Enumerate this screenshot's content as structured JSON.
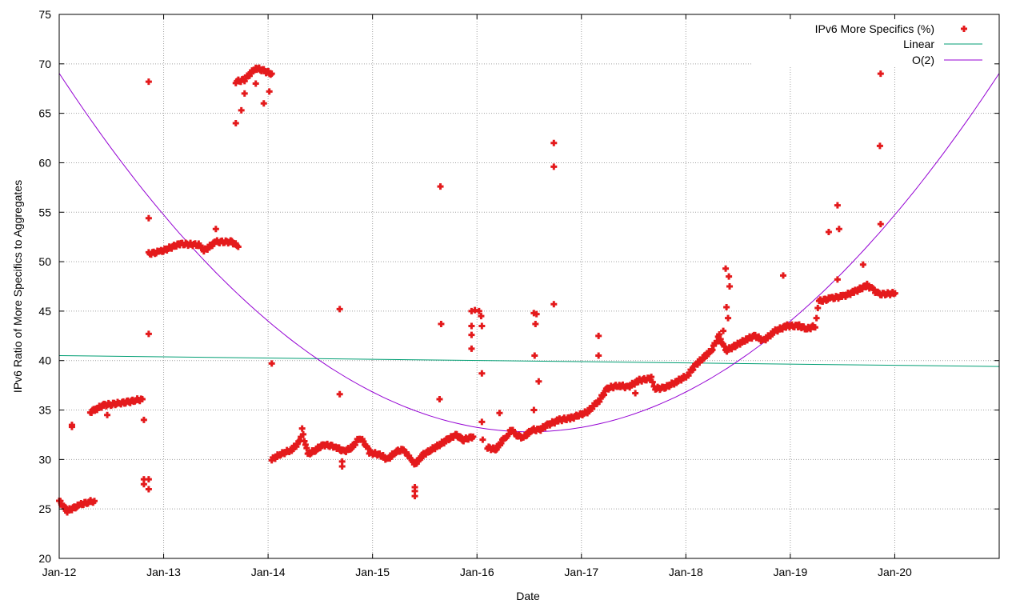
{
  "chart_data": {
    "type": "scatter",
    "xlabel": "Date",
    "ylabel": "IPv6 Ratio of More Specifics to Aggregates",
    "xlim": [
      2012,
      2021
    ],
    "ylim": [
      20,
      75
    ],
    "grid": true,
    "legend_position": "top-right",
    "x_ticks": [
      {
        "x": 2012,
        "label": "Jan-12"
      },
      {
        "x": 2013,
        "label": "Jan-13"
      },
      {
        "x": 2014,
        "label": "Jan-14"
      },
      {
        "x": 2015,
        "label": "Jan-15"
      },
      {
        "x": 2016,
        "label": "Jan-16"
      },
      {
        "x": 2017,
        "label": "Jan-17"
      },
      {
        "x": 2018,
        "label": "Jan-18"
      },
      {
        "x": 2019,
        "label": "Jan-19"
      },
      {
        "x": 2020,
        "label": "Jan-20"
      }
    ],
    "y_ticks": [
      "20",
      "25",
      "30",
      "35",
      "40",
      "45",
      "50",
      "55",
      "60",
      "65",
      "70",
      "75"
    ],
    "series": [
      {
        "name": "IPv6 More Specifics (%)",
        "kind": "points",
        "color": "#e41a1c",
        "trend_segments": [
          [
            [
              2012.0,
              25.8
            ],
            [
              2012.077,
              24.8
            ],
            [
              2012.199,
              25.4
            ],
            [
              2012.275,
              25.7
            ],
            [
              2012.337,
              25.8
            ]
          ],
          [
            [
              2012.298,
              34.8
            ],
            [
              2012.352,
              35.1
            ],
            [
              2012.428,
              35.5
            ],
            [
              2012.505,
              35.6
            ],
            [
              2012.581,
              35.7
            ],
            [
              2012.658,
              35.8
            ],
            [
              2012.735,
              36.0
            ],
            [
              2012.796,
              36.1
            ]
          ],
          [
            [
              2012.857,
              50.8
            ],
            [
              2012.964,
              51.0
            ],
            [
              2013.155,
              51.8
            ],
            [
              2013.347,
              51.7
            ],
            [
              2013.385,
              51.1
            ],
            [
              2013.5,
              52.0
            ],
            [
              2013.653,
              52.0
            ],
            [
              2013.714,
              51.5
            ]
          ],
          [
            [
              2013.691,
              68.2
            ],
            [
              2013.775,
              68.4
            ],
            [
              2013.882,
              69.6
            ],
            [
              2013.959,
              69.3
            ],
            [
              2014.035,
              69.0
            ]
          ],
          [
            [
              2014.035,
              30.0
            ],
            [
              2014.112,
              30.5
            ],
            [
              2014.226,
              31.0
            ],
            [
              2014.303,
              31.8
            ],
            [
              2014.326,
              33.0
            ],
            [
              2014.38,
              30.5
            ],
            [
              2014.456,
              31.0
            ],
            [
              2014.533,
              31.5
            ],
            [
              2014.647,
              31.3
            ],
            [
              2014.724,
              30.8
            ],
            [
              2014.8,
              31.2
            ],
            [
              2014.877,
              32.2
            ],
            [
              2014.938,
              31.5
            ],
            [
              2014.969,
              30.7
            ],
            [
              2015.068,
              30.5
            ],
            [
              2015.145,
              30.0
            ],
            [
              2015.221,
              30.8
            ],
            [
              2015.298,
              31.0
            ],
            [
              2015.336,
              30.5
            ],
            [
              2015.374,
              29.8
            ],
            [
              2015.412,
              29.6
            ],
            [
              2015.489,
              30.5
            ],
            [
              2015.565,
              31.0
            ],
            [
              2015.642,
              31.5
            ],
            [
              2015.718,
              32.0
            ],
            [
              2015.795,
              32.5
            ],
            [
              2015.871,
              32.0
            ],
            [
              2015.963,
              32.3
            ]
          ],
          [
            [
              2016.101,
              31.2
            ],
            [
              2016.177,
              31.0
            ],
            [
              2016.254,
              32.0
            ],
            [
              2016.292,
              32.5
            ],
            [
              2016.33,
              33.0
            ],
            [
              2016.369,
              32.5
            ],
            [
              2016.445,
              32.2
            ],
            [
              2016.522,
              33.0
            ],
            [
              2016.599,
              33.0
            ],
            [
              2016.675,
              33.5
            ],
            [
              2016.79,
              34.0
            ],
            [
              2016.904,
              34.2
            ],
            [
              2017.057,
              34.8
            ],
            [
              2017.172,
              36.0
            ],
            [
              2017.249,
              37.2
            ],
            [
              2017.363,
              37.5
            ],
            [
              2017.44,
              37.3
            ],
            [
              2017.555,
              38.0
            ],
            [
              2017.669,
              38.2
            ],
            [
              2017.708,
              37.2
            ],
            [
              2017.784,
              37.2
            ],
            [
              2017.899,
              37.8
            ],
            [
              2018.014,
              38.5
            ],
            [
              2018.09,
              39.5
            ],
            [
              2018.167,
              40.3
            ],
            [
              2018.243,
              41.0
            ],
            [
              2018.32,
              42.5
            ],
            [
              2018.381,
              41.0
            ],
            [
              2018.473,
              41.5
            ],
            [
              2018.588,
              42.2
            ],
            [
              2018.664,
              42.5
            ],
            [
              2018.741,
              42.0
            ],
            [
              2018.856,
              43.0
            ],
            [
              2018.97,
              43.5
            ],
            [
              2019.085,
              43.5
            ],
            [
              2019.161,
              43.2
            ],
            [
              2019.238,
              43.5
            ],
            [
              2019.276,
              46.0
            ],
            [
              2019.391,
              46.3
            ],
            [
              2019.506,
              46.5
            ],
            [
              2019.621,
              47.0
            ],
            [
              2019.735,
              47.6
            ],
            [
              2019.789,
              47.2
            ],
            [
              2019.85,
              46.7
            ],
            [
              2020.003,
              46.8
            ]
          ]
        ],
        "outliers": [
          [
            2012.122,
            33.3
          ],
          [
            2012.122,
            33.5
          ],
          [
            2012.46,
            34.5
          ],
          [
            2012.811,
            34.0
          ],
          [
            2012.811,
            27.5
          ],
          [
            2012.811,
            28.0
          ],
          [
            2012.857,
            68.2
          ],
          [
            2012.857,
            54.4
          ],
          [
            2012.857,
            42.7
          ],
          [
            2012.857,
            27.0
          ],
          [
            2012.857,
            28.0
          ],
          [
            2013.5,
            53.3
          ],
          [
            2013.691,
            64.0
          ],
          [
            2013.744,
            65.3
          ],
          [
            2013.775,
            67.0
          ],
          [
            2013.882,
            68.0
          ],
          [
            2013.959,
            66.0
          ],
          [
            2014.012,
            67.2
          ],
          [
            2014.035,
            39.7
          ],
          [
            2014.686,
            45.2
          ],
          [
            2014.686,
            36.6
          ],
          [
            2014.709,
            29.3
          ],
          [
            2014.709,
            29.8
          ],
          [
            2015.405,
            26.3
          ],
          [
            2015.405,
            26.8
          ],
          [
            2015.405,
            27.2
          ],
          [
            2015.65,
            57.6
          ],
          [
            2015.657,
            43.7
          ],
          [
            2015.642,
            36.1
          ],
          [
            2015.948,
            45.0
          ],
          [
            2015.98,
            45.1
          ],
          [
            2016.02,
            45.0
          ],
          [
            2016.04,
            44.5
          ],
          [
            2015.948,
            43.5
          ],
          [
            2015.948,
            42.6
          ],
          [
            2015.948,
            41.2
          ],
          [
            2016.047,
            43.5
          ],
          [
            2016.047,
            38.7
          ],
          [
            2016.047,
            33.8
          ],
          [
            2016.055,
            32.0
          ],
          [
            2016.216,
            34.7
          ],
          [
            2016.545,
            44.8
          ],
          [
            2016.56,
            43.7
          ],
          [
            2016.552,
            40.5
          ],
          [
            2016.591,
            37.9
          ],
          [
            2016.545,
            35.0
          ],
          [
            2016.57,
            44.7
          ],
          [
            2016.736,
            62.0
          ],
          [
            2016.736,
            59.6
          ],
          [
            2016.736,
            45.7
          ],
          [
            2017.164,
            42.5
          ],
          [
            2017.164,
            40.5
          ],
          [
            2017.516,
            36.7
          ],
          [
            2018.381,
            49.3
          ],
          [
            2018.412,
            48.5
          ],
          [
            2018.419,
            47.5
          ],
          [
            2018.389,
            45.4
          ],
          [
            2018.404,
            44.3
          ],
          [
            2018.358,
            43.0
          ],
          [
            2018.932,
            48.6
          ],
          [
            2019.368,
            53.0
          ],
          [
            2019.452,
            55.7
          ],
          [
            2019.467,
            53.3
          ],
          [
            2019.452,
            48.2
          ],
          [
            2019.697,
            49.7
          ],
          [
            2019.865,
            70.5
          ],
          [
            2019.865,
            69.0
          ],
          [
            2019.858,
            61.7
          ],
          [
            2019.865,
            53.8
          ]
        ]
      },
      {
        "name": "Linear",
        "kind": "line",
        "color": "#009e73",
        "start": [
          2012,
          40.5
        ],
        "end": [
          2021,
          39.4
        ]
      },
      {
        "name": "O(2)",
        "kind": "line",
        "color": "#9400d3",
        "quadratic": {
          "vertex_x": 2016.5,
          "vertex_y": 32.8,
          "a": 1.79
        },
        "range": [
          2012,
          2021
        ]
      }
    ]
  }
}
